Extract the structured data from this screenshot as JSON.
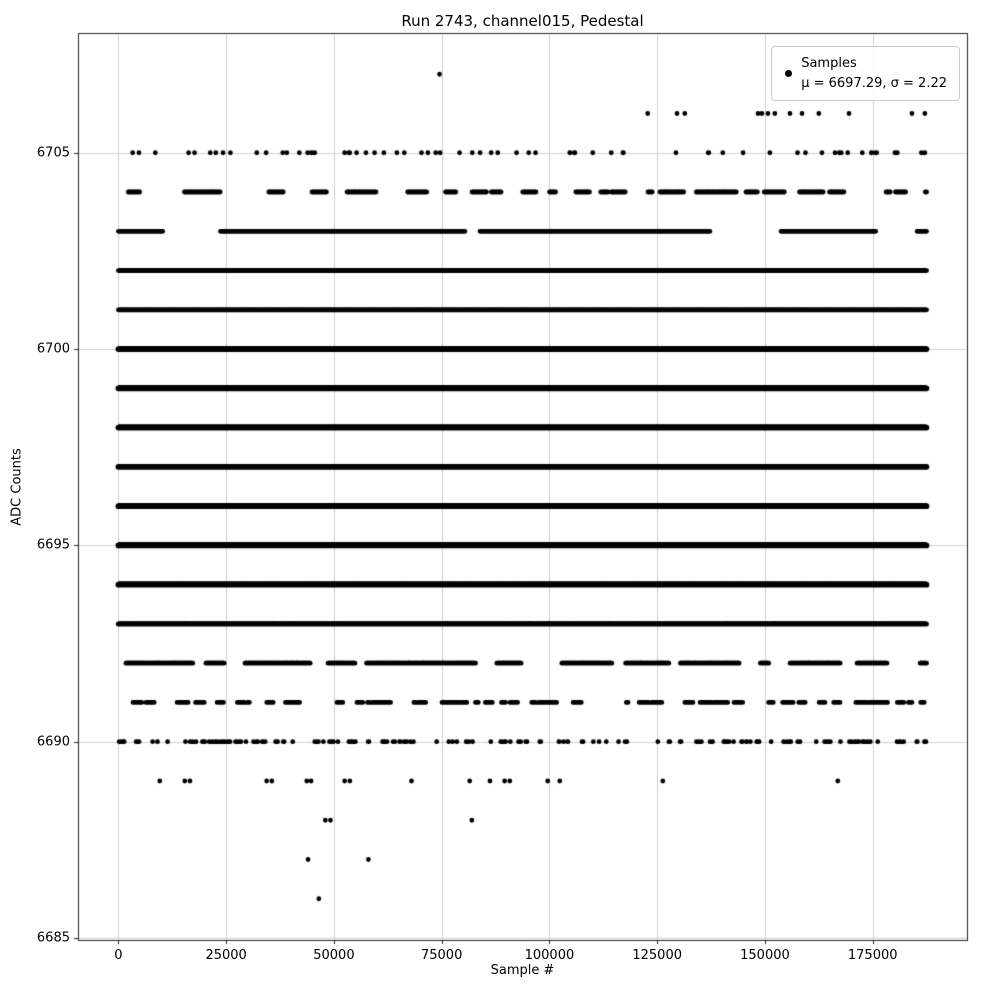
{
  "chart_data": {
    "type": "scatter",
    "title": "Run 2743, channel015, Pedestal",
    "xlabel": "Sample #",
    "ylabel": "ADC Counts",
    "xlim": [
      -9375,
      196875
    ],
    "ylim": [
      6684.95,
      6708.05
    ],
    "x_ticks": [
      0,
      25000,
      50000,
      75000,
      100000,
      125000,
      150000,
      175000
    ],
    "y_ticks": [
      6685,
      6690,
      6695,
      6700,
      6705
    ],
    "n_samples": 187500,
    "grid": true,
    "legend_position": "upper right",
    "legend": {
      "label": "Samples",
      "stats": "μ = 6697.29, σ = 2.22"
    },
    "mu": 6697.29,
    "sigma": 2.22,
    "marker": {
      "color": "#000000",
      "radius_px": 2.4
    },
    "bands": [
      {
        "adc": 6707,
        "style": "points",
        "xs": [
          74500
        ]
      },
      {
        "adc": 6706,
        "style": "points",
        "xs": [
          122800,
          129600,
          131400,
          148400,
          149300,
          150700,
          152300,
          155800,
          158600,
          162500,
          169500,
          184100,
          187100
        ]
      },
      {
        "adc": 6705,
        "style": "random",
        "count": 70
      },
      {
        "adc": 6704,
        "style": "clusters",
        "coverage": 0.42,
        "seg_min": 500,
        "seg_max": 3500,
        "step": 140
      },
      {
        "adc": 6703,
        "style": "clusters",
        "coverage": 0.85,
        "seg_min": 2000,
        "seg_max": 9000,
        "step": 110
      },
      {
        "adc": 6702,
        "style": "solid",
        "step": 100
      },
      {
        "adc": 6701,
        "style": "solid",
        "step": 100
      },
      {
        "adc": 6700,
        "style": "solid",
        "step": 90,
        "weight": 1.2
      },
      {
        "adc": 6699,
        "style": "solid",
        "step": 90,
        "weight": 1.2
      },
      {
        "adc": 6698,
        "style": "solid",
        "step": 90,
        "weight": 1.2
      },
      {
        "adc": 6697,
        "style": "solid",
        "step": 90,
        "weight": 1.2
      },
      {
        "adc": 6696,
        "style": "solid",
        "step": 90,
        "weight": 1.2
      },
      {
        "adc": 6695,
        "style": "solid",
        "step": 90,
        "weight": 1.2
      },
      {
        "adc": 6694,
        "style": "solid",
        "step": 90,
        "weight": 1.2
      },
      {
        "adc": 6693,
        "style": "clusters",
        "coverage": 0.97,
        "seg_min": 4000,
        "seg_max": 12000,
        "step": 100,
        "weight": 1.05
      },
      {
        "adc": 6692,
        "style": "clusters",
        "coverage": 0.78,
        "seg_min": 800,
        "seg_max": 5000,
        "step": 115
      },
      {
        "adc": 6691,
        "style": "clusters",
        "coverage": 0.45,
        "seg_min": 300,
        "seg_max": 2200,
        "step": 135
      },
      {
        "adc": 6690,
        "style": "random",
        "count": 170
      },
      {
        "adc": 6689,
        "style": "points",
        "xs": [
          9600,
          15400,
          16600,
          34400,
          35600,
          43700,
          44700,
          52500,
          53700,
          68000,
          81500,
          86200,
          89600,
          90800,
          99600,
          102400,
          126300,
          166900
        ]
      },
      {
        "adc": 6688,
        "style": "points",
        "xs": [
          48000,
          49200,
          82000
        ]
      },
      {
        "adc": 6687,
        "style": "points",
        "xs": [
          44000,
          58000
        ]
      },
      {
        "adc": 6686,
        "style": "points",
        "xs": [
          46500
        ]
      }
    ]
  }
}
